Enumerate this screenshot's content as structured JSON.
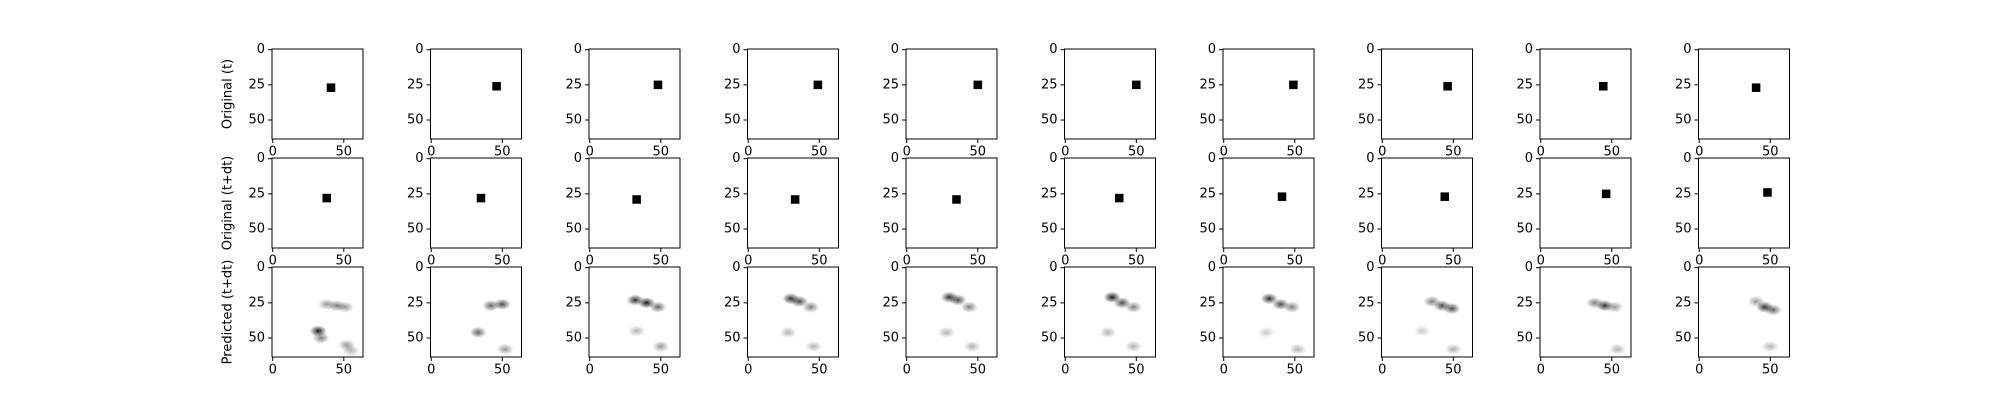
{
  "chart_data": {
    "type": "image-grid",
    "xlim": [
      -0.5,
      63.5
    ],
    "ylim": [
      63.5,
      -0.5
    ],
    "xticks": [
      0,
      50
    ],
    "yticks": [
      0,
      25,
      50
    ],
    "color": "#000000",
    "rows": [
      {
        "label": "Original (t)",
        "kind": "square",
        "size": 6,
        "panels": [
          [
            41,
            27
          ],
          [
            46,
            26
          ],
          [
            48,
            25
          ],
          [
            49,
            25
          ],
          [
            50,
            25
          ],
          [
            50,
            25
          ],
          [
            49,
            25
          ],
          [
            46,
            26
          ],
          [
            44,
            26
          ],
          [
            40,
            27
          ]
        ]
      },
      {
        "label": "Original (t+dt)",
        "kind": "square",
        "size": 6,
        "panels": [
          [
            38,
            28
          ],
          [
            35,
            28
          ],
          [
            33,
            29
          ],
          [
            33,
            29
          ],
          [
            35,
            29
          ],
          [
            38,
            28
          ],
          [
            41,
            27
          ],
          [
            44,
            27
          ],
          [
            46,
            25
          ],
          [
            48,
            24
          ]
        ]
      },
      {
        "label": "Predicted (t+dt)",
        "kind": "blobs",
        "panels": [
          [
            [
              38,
              26,
              0.4
            ],
            [
              45,
              27,
              0.5
            ],
            [
              51,
              28,
              0.4
            ],
            [
              32,
              45,
              0.9
            ],
            [
              34,
              50,
              0.5
            ],
            [
              52,
              55,
              0.4
            ],
            [
              55,
              59,
              0.3
            ]
          ],
          [
            [
              42,
              27,
              0.6
            ],
            [
              50,
              26,
              0.7
            ],
            [
              33,
              46,
              0.6
            ],
            [
              52,
              58,
              0.4
            ]
          ],
          [
            [
              32,
              23,
              0.8
            ],
            [
              40,
              25,
              0.9
            ],
            [
              48,
              28,
              0.6
            ],
            [
              33,
              45,
              0.3
            ],
            [
              50,
              56,
              0.4
            ]
          ],
          [
            [
              30,
              22,
              0.8
            ],
            [
              36,
              24,
              0.7
            ],
            [
              44,
              28,
              0.5
            ],
            [
              28,
              46,
              0.3
            ],
            [
              46,
              56,
              0.3
            ]
          ],
          [
            [
              30,
              21,
              0.8
            ],
            [
              36,
              23,
              0.7
            ],
            [
              44,
              28,
              0.5
            ],
            [
              28,
              46,
              0.3
            ],
            [
              46,
              56,
              0.3
            ]
          ],
          [
            [
              33,
              21,
              0.9
            ],
            [
              40,
              25,
              0.7
            ],
            [
              48,
              28,
              0.5
            ],
            [
              30,
              46,
              0.3
            ],
            [
              48,
              56,
              0.3
            ]
          ],
          [
            [
              32,
              22,
              0.8
            ],
            [
              40,
              26,
              0.7
            ],
            [
              48,
              28,
              0.5
            ],
            [
              30,
              46,
              0.2
            ],
            [
              52,
              58,
              0.3
            ]
          ],
          [
            [
              35,
              24,
              0.5
            ],
            [
              42,
              27,
              0.7
            ],
            [
              49,
              29,
              0.7
            ],
            [
              28,
              45,
              0.2
            ],
            [
              50,
              58,
              0.3
            ]
          ],
          [
            [
              38,
              25,
              0.5
            ],
            [
              45,
              27,
              0.8
            ],
            [
              52,
              28,
              0.4
            ],
            [
              54,
              58,
              0.3
            ]
          ],
          [
            [
              40,
              24,
              0.4
            ],
            [
              46,
              28,
              0.8
            ],
            [
              52,
              30,
              0.6
            ],
            [
              50,
              56,
              0.3
            ]
          ]
        ]
      }
    ]
  }
}
